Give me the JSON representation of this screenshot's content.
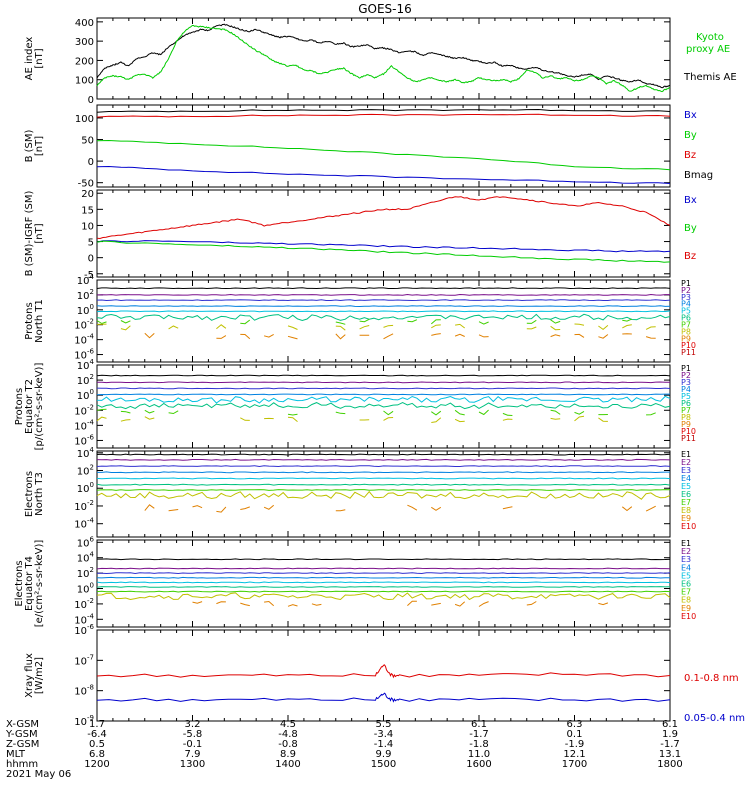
{
  "title": "GOES-16",
  "colors": {
    "black": "#000000",
    "red": "#dd0000",
    "green": "#00cc00",
    "blue": "#0000cc",
    "P1": "#000000",
    "P2": "#7a0f8a",
    "P3": "#3030d0",
    "P4": "#0080e0",
    "P5": "#00c0e0",
    "P6": "#00c080",
    "P7": "#40d000",
    "P8": "#c0c000",
    "P9": "#e08000",
    "P10": "#e00000",
    "P11": "#c00000"
  },
  "chart_data": [
    {
      "id": "ae",
      "type": "line",
      "ylabel": [
        "AE index",
        "[nT]"
      ],
      "yscale": "linear",
      "ylim": [
        0,
        420
      ],
      "yticks": [
        "0",
        "100",
        "200",
        "300",
        "400"
      ],
      "ytick_values": [
        0,
        100,
        200,
        300,
        400
      ],
      "legend": [
        {
          "text": "Kyoto\nproxy AE",
          "color": "#00cc00"
        },
        {
          "text": "Themis AE",
          "color": "#000000"
        }
      ],
      "series": [
        {
          "name": "Themis AE",
          "color": "#000000",
          "x": [
            0,
            5,
            10,
            15,
            20,
            25,
            30,
            35,
            40,
            45,
            50,
            55,
            60,
            65,
            70,
            75,
            80,
            85,
            90,
            95,
            100,
            105,
            110,
            115,
            120,
            125,
            130,
            135,
            140,
            145,
            150,
            155,
            160,
            165,
            170,
            175,
            180,
            185,
            190,
            195,
            200,
            205,
            210,
            215,
            220,
            225,
            230,
            235,
            240,
            245,
            250,
            255,
            260,
            265,
            270,
            275,
            280,
            285,
            290,
            295,
            300,
            305,
            310,
            315,
            320,
            325,
            330,
            335,
            340,
            345,
            350,
            355,
            360
          ],
          "y": [
            110,
            160,
            175,
            190,
            170,
            210,
            220,
            240,
            230,
            270,
            300,
            330,
            345,
            360,
            355,
            380,
            385,
            375,
            360,
            350,
            360,
            345,
            330,
            320,
            325,
            315,
            300,
            305,
            290,
            300,
            285,
            290,
            270,
            275,
            280,
            260,
            265,
            255,
            240,
            250,
            245,
            225,
            240,
            230,
            220,
            210,
            215,
            200,
            195,
            185,
            190,
            170,
            175,
            160,
            155,
            165,
            150,
            140,
            135,
            120,
            115,
            125,
            130,
            100,
            120,
            110,
            95,
            90,
            100,
            80,
            75,
            60,
            70
          ]
        },
        {
          "name": "Kyoto proxy AE",
          "color": "#00cc00",
          "x": [
            0,
            5,
            10,
            15,
            20,
            25,
            30,
            35,
            40,
            45,
            50,
            55,
            60,
            65,
            70,
            75,
            80,
            85,
            90,
            95,
            100,
            105,
            110,
            115,
            120,
            125,
            130,
            135,
            140,
            145,
            150,
            155,
            160,
            165,
            170,
            175,
            180,
            185,
            190,
            195,
            200,
            205,
            210,
            215,
            220,
            225,
            230,
            235,
            240,
            245,
            250,
            255,
            260,
            265,
            270,
            275,
            280,
            285,
            290,
            295,
            300,
            305,
            310,
            315,
            320,
            325,
            330,
            335,
            340,
            345,
            350,
            355,
            360
          ],
          "y": [
            70,
            110,
            120,
            115,
            100,
            125,
            130,
            110,
            140,
            210,
            300,
            350,
            380,
            375,
            370,
            365,
            360,
            340,
            310,
            280,
            250,
            230,
            200,
            185,
            170,
            175,
            150,
            145,
            130,
            140,
            155,
            160,
            130,
            110,
            125,
            110,
            130,
            170,
            140,
            110,
            90,
            100,
            110,
            95,
            90,
            100,
            85,
            90,
            110,
            100,
            95,
            100,
            90,
            105,
            150,
            140,
            110,
            120,
            105,
            110,
            95,
            100,
            120,
            110,
            80,
            95,
            70,
            40,
            60,
            70,
            50,
            40,
            60
          ]
        }
      ]
    },
    {
      "id": "bsm",
      "type": "line",
      "ylabel": [
        "B (SM)",
        "[nT]"
      ],
      "yscale": "linear",
      "ylim": [
        -60,
        130
      ],
      "yticks": [
        "-50",
        "0",
        "50",
        "100"
      ],
      "ytick_values": [
        -50,
        0,
        50,
        100
      ],
      "legend": [
        {
          "text": "Bx",
          "color": "#0000cc"
        },
        {
          "text": "By",
          "color": "#00cc00"
        },
        {
          "text": "Bz",
          "color": "#dd0000"
        },
        {
          "text": "Bmag",
          "color": "#000000"
        }
      ],
      "series": [
        {
          "name": "Bmag",
          "color": "#000000",
          "x": [
            0,
            60,
            120,
            180,
            240,
            300,
            360
          ],
          "y": [
            114,
            116,
            118,
            118,
            119,
            118,
            115
          ]
        },
        {
          "name": "Bz",
          "color": "#dd0000",
          "x": [
            0,
            60,
            120,
            180,
            240,
            300,
            360
          ],
          "y": [
            103,
            104,
            106,
            107,
            108,
            107,
            104
          ]
        },
        {
          "name": "By",
          "color": "#00cc00",
          "x": [
            0,
            60,
            120,
            180,
            240,
            300,
            360
          ],
          "y": [
            48,
            40,
            30,
            18,
            6,
            -12,
            -20
          ]
        },
        {
          "name": "Bx",
          "color": "#0000cc",
          "x": [
            0,
            60,
            120,
            180,
            240,
            300,
            360
          ],
          "y": [
            -12,
            -22,
            -30,
            -36,
            -42,
            -47,
            -52
          ]
        }
      ]
    },
    {
      "id": "bres",
      "type": "line",
      "ylabel": [
        "B (SM)-IGRF (SM)",
        "[nT]"
      ],
      "yscale": "linear",
      "ylim": [
        -6,
        21
      ],
      "yticks": [
        "-5",
        "0",
        "5",
        "10",
        "15",
        "20"
      ],
      "ytick_values": [
        -5,
        0,
        5,
        10,
        15,
        20
      ],
      "legend": [
        {
          "text": "Bx",
          "color": "#0000cc"
        },
        {
          "text": "By",
          "color": "#00cc00"
        },
        {
          "text": "Bz",
          "color": "#dd0000"
        }
      ],
      "series": [
        {
          "name": "Bz",
          "color": "#dd0000",
          "x": [
            0,
            15,
            30,
            45,
            60,
            75,
            90,
            105,
            120,
            135,
            150,
            165,
            180,
            195,
            210,
            225,
            240,
            255,
            270,
            285,
            300,
            315,
            330,
            345,
            360
          ],
          "y": [
            6,
            7,
            8,
            9,
            10,
            11,
            12,
            10,
            11,
            12,
            13,
            14,
            15,
            15,
            17,
            19,
            18,
            19,
            18,
            17,
            16,
            17,
            16,
            14,
            10
          ]
        },
        {
          "name": "Bx",
          "color": "#0000cc",
          "x": [
            0,
            30,
            60,
            90,
            120,
            150,
            180,
            210,
            240,
            270,
            300,
            330,
            360
          ],
          "y": [
            5,
            5.2,
            5,
            4.6,
            4.3,
            4,
            3.6,
            3.2,
            3,
            2.7,
            2.3,
            2,
            2
          ]
        },
        {
          "name": "By",
          "color": "#00cc00",
          "x": [
            0,
            30,
            60,
            90,
            120,
            150,
            180,
            210,
            240,
            270,
            300,
            330,
            360
          ],
          "y": [
            5,
            4.5,
            4,
            3.5,
            3,
            2.5,
            1.8,
            1.2,
            0.6,
            0,
            -0.5,
            -1,
            -1.3
          ]
        }
      ]
    },
    {
      "id": "prot_t1",
      "type": "line",
      "ylabel": [
        "Protons",
        "North T1"
      ],
      "yscale": "log",
      "ylim": [
        -7,
        4
      ],
      "yticks": [
        "10^4",
        "10^2",
        "10^0",
        "10^-2",
        "10^-4",
        "10^-6"
      ],
      "ytick_values": [
        4,
        2,
        0,
        -2,
        -4,
        -6
      ],
      "legend_labels": [
        "P1",
        "P2",
        "P3",
        "P4",
        "P5",
        "P6",
        "P7",
        "P8",
        "P9",
        "P10",
        "P11"
      ],
      "levels_log10": [
        2.9,
        2.0,
        1.3,
        0.5,
        -0.2,
        -1.0,
        -1.6,
        -2.3,
        -3.5,
        -5.0,
        -6.2
      ],
      "shown_series": [
        0,
        1,
        2,
        3,
        4,
        5,
        6,
        7,
        8
      ]
    },
    {
      "id": "prot_t2",
      "type": "line",
      "ylabel": [
        "Protons",
        "Equator T2",
        "[p/(cm²-s-sr-keV)]"
      ],
      "yscale": "log",
      "ylim": [
        -7,
        4
      ],
      "yticks": [
        "10^4",
        "10^2",
        "10^0",
        "10^-2",
        "10^-4",
        "10^-6"
      ],
      "ytick_values": [
        4,
        2,
        0,
        -2,
        -4,
        -6
      ],
      "legend_labels": [
        "P1",
        "P2",
        "P3",
        "P4",
        "P5",
        "P6",
        "P7",
        "P8",
        "P9",
        "P10",
        "P11"
      ],
      "levels_log10": [
        2.6,
        1.7,
        0.9,
        0.1,
        -0.6,
        -1.4,
        -2.3,
        -3.2,
        -4.5,
        -5.8,
        -6.5
      ],
      "shown_series": [
        0,
        1,
        2,
        3,
        4,
        5,
        6,
        7
      ]
    },
    {
      "id": "elec_t3",
      "type": "line",
      "ylabel": [
        "Electrons",
        "North T3"
      ],
      "yscale": "log",
      "ylim": [
        -5.5,
        4.2
      ],
      "yticks": [
        "10^4",
        "10^2",
        "10^0",
        "10^-2",
        "10^-4"
      ],
      "ytick_values": [
        4,
        2,
        0,
        -2,
        -4
      ],
      "legend_labels": [
        "E1",
        "E2",
        "E3",
        "E4",
        "E5",
        "E6",
        "E7",
        "E8",
        "E9",
        "E10"
      ],
      "levels_log10": [
        3.8,
        3.2,
        2.5,
        1.8,
        1.1,
        0.4,
        -0.2,
        -0.8,
        -2.3,
        -4.5
      ],
      "shown_series": [
        0,
        1,
        2,
        3,
        4,
        5,
        6,
        7,
        8
      ]
    },
    {
      "id": "elec_t4",
      "type": "line",
      "ylabel": [
        "Electrons",
        "Equator T4",
        "[e/(cm²-s-sr-keV)]"
      ],
      "yscale": "log",
      "ylim": [
        -5,
        6.3
      ],
      "yticks": [
        "10^6",
        "10^4",
        "10^2",
        "10^0",
        "10^-2",
        "10^-4"
      ],
      "ytick_values": [
        6,
        4,
        2,
        0,
        -2,
        -4
      ],
      "legend_labels": [
        "E1",
        "E2",
        "E3",
        "E4",
        "E5",
        "E6",
        "E7",
        "E8",
        "E9",
        "E10"
      ],
      "levels_log10": [
        3.8,
        2.6,
        2.0,
        1.4,
        0.8,
        0.2,
        -0.4,
        -1.0,
        -2.0,
        -4.0
      ],
      "shown_series": [
        0,
        1,
        2,
        3,
        4,
        5,
        6,
        7,
        8
      ]
    },
    {
      "id": "xray",
      "type": "line",
      "ylabel": [
        "Xray flux",
        "[W/m2]"
      ],
      "yscale": "log",
      "ylim": [
        -9,
        -6
      ],
      "yticks": [
        "10^-6",
        "10^-7",
        "10^-8",
        "10^-9"
      ],
      "ytick_values": [
        -6,
        -7,
        -8,
        -9
      ],
      "legend": [
        {
          "text": "0.1-0.8 nm",
          "color": "#dd0000"
        },
        {
          "text": "0.05-0.4 nm",
          "color": "#0000cc"
        }
      ],
      "series": [
        {
          "name": "0.1-0.8 nm",
          "color": "#dd0000",
          "x": [
            0,
            60,
            120,
            175,
            180,
            185,
            190,
            240,
            300,
            360
          ],
          "y": [
            -7.5,
            -7.5,
            -7.5,
            -7.5,
            -7.15,
            -7.5,
            -7.5,
            -7.5,
            -7.45,
            -7.5
          ]
        },
        {
          "name": "0.05-0.4 nm",
          "color": "#0000cc",
          "x": [
            0,
            60,
            120,
            175,
            180,
            185,
            190,
            240,
            300,
            360
          ],
          "y": [
            -8.3,
            -8.3,
            -8.3,
            -8.3,
            -8.1,
            -8.3,
            -8.3,
            -8.3,
            -8.3,
            -8.3
          ]
        }
      ]
    }
  ],
  "xaxis": {
    "row_labels": [
      "X-GSM",
      "Y-GSM",
      "Z-GSM",
      "MLT",
      "hhmm"
    ],
    "date": "2021 May 06",
    "columns": [
      [
        "1.7",
        "-6.4",
        "0.5",
        "6.8",
        "1200"
      ],
      [
        "3.2",
        "-5.8",
        "-0.1",
        "7.9",
        "1300"
      ],
      [
        "4.5",
        "-4.8",
        "-0.8",
        "8.9",
        "1400"
      ],
      [
        "5.5",
        "-3.4",
        "-1.4",
        "9.9",
        "1500"
      ],
      [
        "6.1",
        "-1.7",
        "-1.8",
        "11.0",
        "1600"
      ],
      [
        "6.3",
        "0.1",
        "-1.9",
        "12.1",
        "1700"
      ],
      [
        "6.1",
        "1.9",
        "-1.7",
        "13.1",
        "1800"
      ]
    ]
  }
}
